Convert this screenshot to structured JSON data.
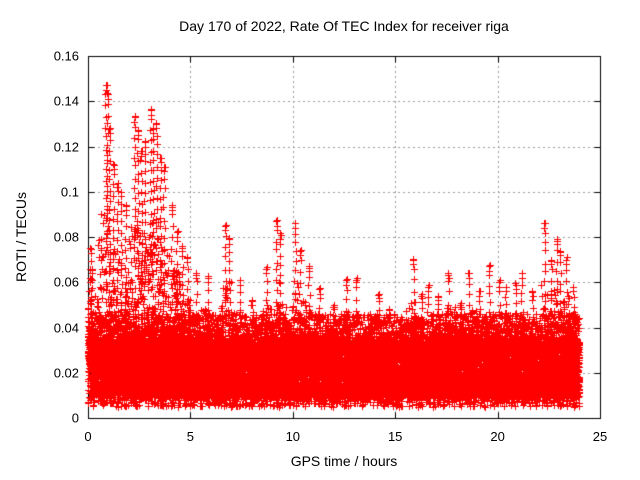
{
  "window": {
    "background": "#ffffff"
  },
  "chart_data": {
    "type": "scatter",
    "title": "Day 170 of 2022, Rate Of TEC Index for receiver riga",
    "xlabel": "GPS time / hours",
    "ylabel": "ROTI / TECUs",
    "xlim": [
      0,
      25
    ],
    "ylim": [
      0,
      0.16
    ],
    "x_ticks": {
      "values": [
        0,
        5,
        10,
        15,
        20,
        25
      ],
      "labels": [
        "0",
        "5",
        "10",
        "15",
        "20",
        "25"
      ]
    },
    "y_ticks": {
      "values": [
        0,
        0.02,
        0.04,
        0.06,
        0.08,
        0.1,
        0.12,
        0.14,
        0.16
      ],
      "labels": [
        "0",
        "0.02",
        "0.04",
        "0.06",
        "0.08",
        "0.1",
        "0.12",
        "0.14",
        "0.16"
      ]
    },
    "grid": true,
    "legend": "none",
    "marker": "plus",
    "colors": {
      "marker": "#ff0000",
      "grid": "#9e9e9e",
      "axis": "#000000",
      "background": "#ffffff"
    },
    "data_hour_range": [
      0,
      24
    ],
    "band": {
      "sparse_lo": 0.005,
      "solid_lo": 0.009,
      "solid_hi": 0.033,
      "upper_fade_hi": 0.046,
      "points_core": 300,
      "points_low": 12,
      "points_upper": 70,
      "points_tail": 30,
      "points_tail_early": 72,
      "early_hours": 5
    },
    "envelope_bins": {
      "bin_hours": 0.5,
      "upper": [
        0.075,
        0.147,
        0.112,
        0.1,
        0.135,
        0.122,
        0.136,
        0.112,
        0.095,
        0.072,
        0.065,
        0.064,
        0.055,
        0.085,
        0.062,
        0.055,
        0.052,
        0.066,
        0.087,
        0.065,
        0.087,
        0.07,
        0.058,
        0.052,
        0.05,
        0.062,
        0.063,
        0.05,
        0.055,
        0.045,
        0.042,
        0.071,
        0.055,
        0.06,
        0.055,
        0.065,
        0.052,
        0.065,
        0.058,
        0.068,
        0.062,
        0.06,
        0.065,
        0.058,
        0.086,
        0.08,
        0.078,
        0.06
      ]
    },
    "spike_columns": [
      [
        0.08,
        0.062
      ],
      [
        0.12,
        0.075
      ],
      [
        0.18,
        0.066
      ],
      [
        0.88,
        0.147
      ],
      [
        0.95,
        0.143
      ],
      [
        1.05,
        0.128
      ],
      [
        1.25,
        0.112
      ],
      [
        1.45,
        0.104
      ],
      [
        1.62,
        0.1
      ],
      [
        1.85,
        0.094
      ],
      [
        2.28,
        0.133
      ],
      [
        2.45,
        0.127
      ],
      [
        2.6,
        0.118
      ],
      [
        2.78,
        0.122
      ],
      [
        3.05,
        0.136
      ],
      [
        3.18,
        0.128
      ],
      [
        3.35,
        0.13
      ],
      [
        3.55,
        0.115
      ],
      [
        3.72,
        0.111
      ],
      [
        4.1,
        0.094
      ],
      [
        4.35,
        0.082
      ],
      [
        4.6,
        0.076
      ],
      [
        4.85,
        0.071
      ],
      [
        5.3,
        0.064
      ],
      [
        5.85,
        0.062
      ],
      [
        6.7,
        0.085
      ],
      [
        6.9,
        0.079
      ],
      [
        7.4,
        0.061
      ],
      [
        8.0,
        0.052
      ],
      [
        8.7,
        0.066
      ],
      [
        9.2,
        0.087
      ],
      [
        9.4,
        0.081
      ],
      [
        10.1,
        0.086
      ],
      [
        10.35,
        0.074
      ],
      [
        10.8,
        0.067
      ],
      [
        11.3,
        0.057
      ],
      [
        12.0,
        0.05
      ],
      [
        12.6,
        0.061
      ],
      [
        13.1,
        0.062
      ],
      [
        14.2,
        0.055
      ],
      [
        14.7,
        0.048
      ],
      [
        15.9,
        0.07
      ],
      [
        16.3,
        0.055
      ],
      [
        16.6,
        0.058
      ],
      [
        17.1,
        0.054
      ],
      [
        17.6,
        0.064
      ],
      [
        18.2,
        0.051
      ],
      [
        18.6,
        0.064
      ],
      [
        19.1,
        0.056
      ],
      [
        19.6,
        0.067
      ],
      [
        20.1,
        0.06
      ],
      [
        20.4,
        0.058
      ],
      [
        20.9,
        0.059
      ],
      [
        21.2,
        0.064
      ],
      [
        21.7,
        0.056
      ],
      [
        22.3,
        0.086
      ],
      [
        22.6,
        0.07
      ],
      [
        22.9,
        0.079
      ],
      [
        23.05,
        0.074
      ],
      [
        23.35,
        0.07
      ],
      [
        23.7,
        0.058
      ]
    ],
    "seed": 170
  }
}
